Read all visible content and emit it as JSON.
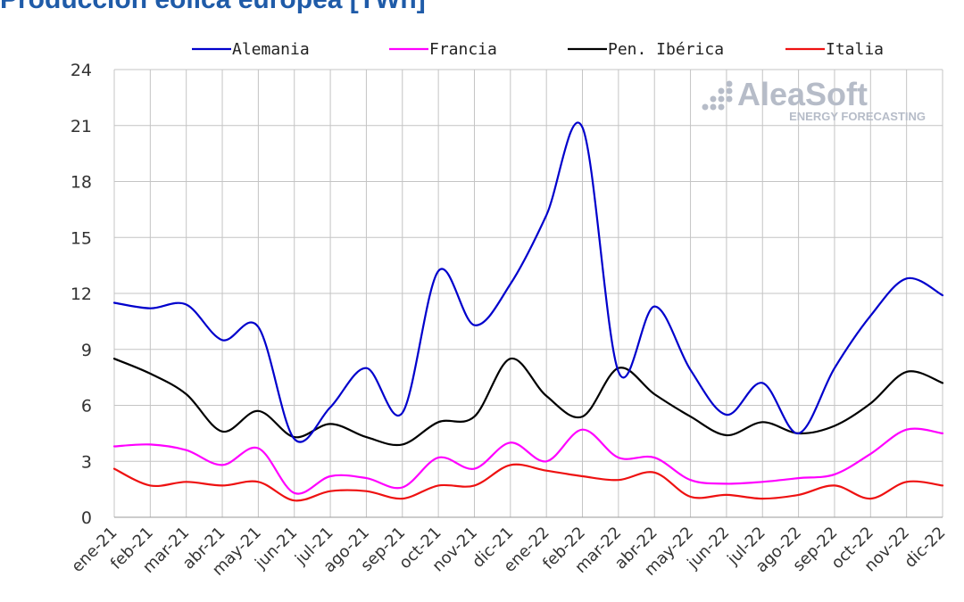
{
  "title": "Producción eólica europea [TWh]",
  "watermark": {
    "brand": "AleaSoft",
    "tagline": "ENERGY FORECASTING"
  },
  "chart_data": {
    "type": "line",
    "title": "Producción eólica europea [TWh]",
    "xlabel": "",
    "ylabel": "",
    "ylim": [
      0,
      24
    ],
    "yticks": [
      0,
      3,
      6,
      9,
      12,
      15,
      18,
      21,
      24
    ],
    "grid": true,
    "legend_position": "top",
    "categories": [
      "ene-21",
      "feb-21",
      "mar-21",
      "abr-21",
      "may-21",
      "jun-21",
      "jul-21",
      "ago-21",
      "sep-21",
      "oct-21",
      "nov-21",
      "dic-21",
      "ene-22",
      "feb-22",
      "mar-22",
      "abr-22",
      "may-22",
      "jun-22",
      "jul-22",
      "ago-22",
      "sep-22",
      "oct-22",
      "nov-22",
      "dic-22"
    ],
    "series": [
      {
        "name": "Alemania",
        "color": "#0000cc",
        "values": [
          11.5,
          11.2,
          11.4,
          9.5,
          10.2,
          4.2,
          5.9,
          8.0,
          5.6,
          13.2,
          10.3,
          12.5,
          16.2,
          20.9,
          7.8,
          11.3,
          7.9,
          5.5,
          7.2,
          4.5,
          8.0,
          10.8,
          12.8,
          11.9
        ]
      },
      {
        "name": "Francia",
        "color": "#ff00ff",
        "values": [
          3.8,
          3.9,
          3.6,
          2.8,
          3.7,
          1.3,
          2.2,
          2.1,
          1.6,
          3.2,
          2.6,
          4.0,
          3.0,
          4.7,
          3.2,
          3.2,
          2.0,
          1.8,
          1.9,
          2.1,
          2.3,
          3.4,
          4.7,
          4.5
        ]
      },
      {
        "name": "Pen. Ibérica",
        "color": "#000000",
        "values": [
          8.5,
          7.7,
          6.6,
          4.6,
          5.7,
          4.3,
          5.0,
          4.3,
          3.9,
          5.1,
          5.4,
          8.5,
          6.5,
          5.4,
          8.0,
          6.6,
          5.4,
          4.4,
          5.1,
          4.5,
          4.9,
          6.1,
          7.8,
          7.2
        ]
      },
      {
        "name": "Italia",
        "color": "#ee1111",
        "values": [
          2.6,
          1.7,
          1.9,
          1.7,
          1.9,
          0.9,
          1.4,
          1.4,
          1.0,
          1.7,
          1.7,
          2.8,
          2.5,
          2.2,
          2.0,
          2.4,
          1.1,
          1.2,
          1.0,
          1.2,
          1.7,
          1.0,
          1.9,
          1.7
        ]
      }
    ]
  }
}
